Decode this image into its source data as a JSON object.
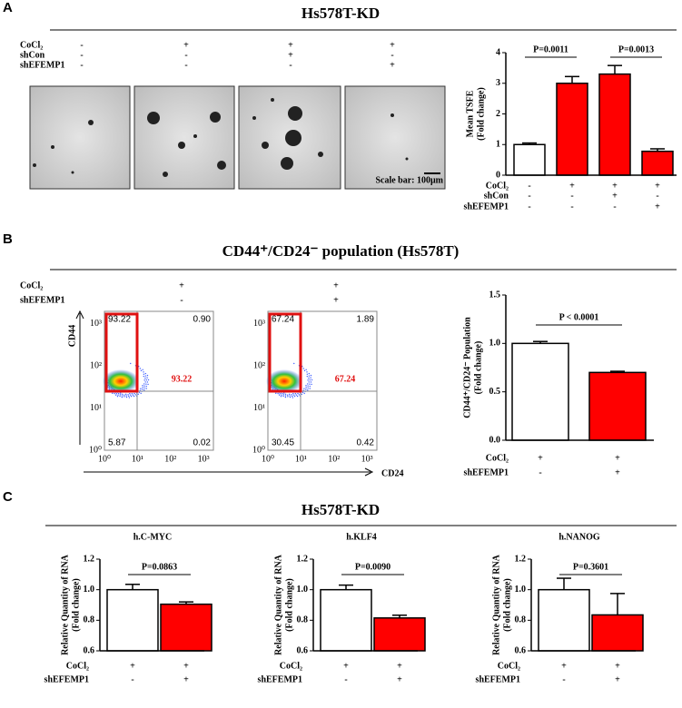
{
  "panel_a": {
    "letter": "A",
    "title": "Hs578T-KD",
    "conditions": [
      {
        "name": "CoCl₂",
        "marks": [
          "-",
          "+",
          "+",
          "+"
        ]
      },
      {
        "name": "shCon",
        "marks": [
          "-",
          "-",
          "+",
          "-"
        ]
      },
      {
        "name": "shEFEMP1",
        "marks": [
          "-",
          "-",
          "-",
          "+"
        ]
      }
    ],
    "scale_bar": "Scale bar: 100μm"
  },
  "panel_b": {
    "letter": "B",
    "title": "CD44⁺/CD24⁻ population (Hs578T)",
    "conditions": [
      {
        "name": "CoCl₂",
        "marks": [
          "+",
          "+"
        ]
      },
      {
        "name": "shEFEMP1",
        "marks": [
          "-",
          "+"
        ]
      }
    ],
    "flow": {
      "y_axis": "CD44",
      "x_axis": "CD24",
      "ticks": [
        "10⁰",
        "10¹",
        "10²",
        "10³"
      ],
      "plots": [
        {
          "quadrants": [
            "93.22",
            "0.90",
            "5.87",
            "0.02"
          ],
          "gate": "93.22"
        },
        {
          "quadrants": [
            "67.24",
            "1.89",
            "30.45",
            "0.42"
          ],
          "gate": "67.24"
        }
      ]
    }
  },
  "panel_c": {
    "letter": "C",
    "title": "Hs578T-KD"
  },
  "chart_data": [
    {
      "type": "bar",
      "y_label": [
        "Mean TSFE",
        "(Fold change)"
      ],
      "values": [
        1.0,
        3.0,
        3.3,
        0.78
      ],
      "errors": [
        0.05,
        0.22,
        0.28,
        0.08
      ],
      "colors": [
        "#ffffff",
        "#ff0000",
        "#ff0000",
        "#ff0000"
      ],
      "ylim": [
        0,
        4
      ],
      "yticks": [
        0,
        1,
        2,
        3,
        4
      ],
      "annotations": [
        "P=0.0011",
        "P=0.0013"
      ],
      "conditions": [
        {
          "name": "CoCl₂",
          "marks": [
            "-",
            "+",
            "+",
            "+"
          ]
        },
        {
          "name": "shCon",
          "marks": [
            "-",
            "-",
            "+",
            "-"
          ]
        },
        {
          "name": "shEFEMP1",
          "marks": [
            "-",
            "-",
            "-",
            "+"
          ]
        }
      ]
    },
    {
      "type": "bar",
      "y_label": [
        "CD44⁺/CD24⁻ Population",
        "(Fold change)"
      ],
      "values": [
        1.0,
        0.7
      ],
      "errors": [
        0.02,
        0.012
      ],
      "colors": [
        "#ffffff",
        "#ff0000"
      ],
      "ylim": [
        0,
        1.5
      ],
      "yticks": [
        {
          "value": 0,
          "label": "0.0"
        },
        0.5,
        {
          "value": 1,
          "label": "1.0"
        },
        1.5
      ],
      "annotations": [
        "P < 0.0001"
      ],
      "conditions": [
        {
          "name": "CoCl₂",
          "marks": [
            "+",
            "+"
          ]
        },
        {
          "name": "shEFEMP1",
          "marks": [
            "-",
            "+"
          ]
        }
      ]
    },
    {
      "type": "bar",
      "title": "h.C-MYC",
      "y_label": [
        "Relative Quantity of RNA",
        "(Fold change)"
      ],
      "values": [
        1.0,
        0.905
      ],
      "errors": [
        0.035,
        0.015
      ],
      "colors": [
        "#ffffff",
        "#ff0000"
      ],
      "ylim": [
        0.6,
        1.2
      ],
      "yticks": [
        0.6,
        0.8,
        {
          "value": 1,
          "label": "1.0"
        },
        1.2
      ],
      "annotations": [
        "P=0.0863"
      ],
      "conditions": [
        {
          "name": "CoCl₂",
          "marks": [
            "+",
            "+"
          ]
        },
        {
          "name": "shEFEMP1",
          "marks": [
            "-",
            "+"
          ]
        }
      ]
    },
    {
      "type": "bar",
      "title": "h.KLF4",
      "y_label": [
        "Relative Quantity of RNA",
        "(Fold change)"
      ],
      "values": [
        1.0,
        0.815
      ],
      "errors": [
        0.03,
        0.018
      ],
      "colors": [
        "#ffffff",
        "#ff0000"
      ],
      "ylim": [
        0.6,
        1.2
      ],
      "yticks": [
        0.6,
        0.8,
        {
          "value": 1,
          "label": "1.0"
        },
        1.2
      ],
      "annotations": [
        "P=0.0090"
      ],
      "conditions": [
        {
          "name": "CoCl₂",
          "marks": [
            "+",
            "+"
          ]
        },
        {
          "name": "shEFEMP1",
          "marks": [
            "-",
            "+"
          ]
        }
      ]
    },
    {
      "type": "bar",
      "title": "h.NANOG",
      "y_label": [
        "Relative Quantity of RNA",
        "(Fold change)"
      ],
      "values": [
        1.0,
        0.835
      ],
      "errors": [
        0.075,
        0.14
      ],
      "colors": [
        "#ffffff",
        "#ff0000"
      ],
      "ylim": [
        0.6,
        1.2
      ],
      "yticks": [
        0.6,
        0.8,
        {
          "value": 1,
          "label": "1.0"
        },
        1.2
      ],
      "annotations": [
        "P=0.3601"
      ],
      "conditions": [
        {
          "name": "CoCl₂",
          "marks": [
            "+",
            "+"
          ]
        },
        {
          "name": "shEFEMP1",
          "marks": [
            "-",
            "+"
          ]
        }
      ]
    }
  ]
}
